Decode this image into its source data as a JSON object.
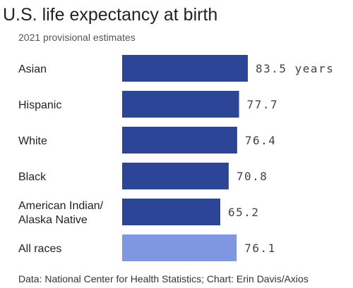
{
  "header": {
    "title": "U.S. life expectancy at birth",
    "subtitle": "2021 provisional estimates"
  },
  "footer": {
    "source": "Data: National Center for Health Statistics; Chart: Erin Davis/Axios"
  },
  "colors": {
    "bar": "#2d4597",
    "highlight_bar": "#7f97e0",
    "label": "#222222",
    "value": "#444444"
  },
  "chart_data": {
    "type": "bar",
    "orientation": "horizontal",
    "title": "U.S. life expectancy at birth",
    "subtitle": "2021 provisional estimates",
    "unit": "years",
    "categories": [
      "Asian",
      "Hispanic",
      "White",
      "Black",
      "American Indian/ Alaska Native",
      "All races"
    ],
    "value_labels": [
      "83.5 years",
      "77.7",
      "76.4",
      "70.8",
      "65.2",
      "76.1"
    ],
    "values": [
      83.5,
      77.7,
      76.4,
      70.8,
      65.2,
      76.1
    ],
    "highlighted": [
      "All races"
    ],
    "grid": false,
    "legend": "none"
  }
}
